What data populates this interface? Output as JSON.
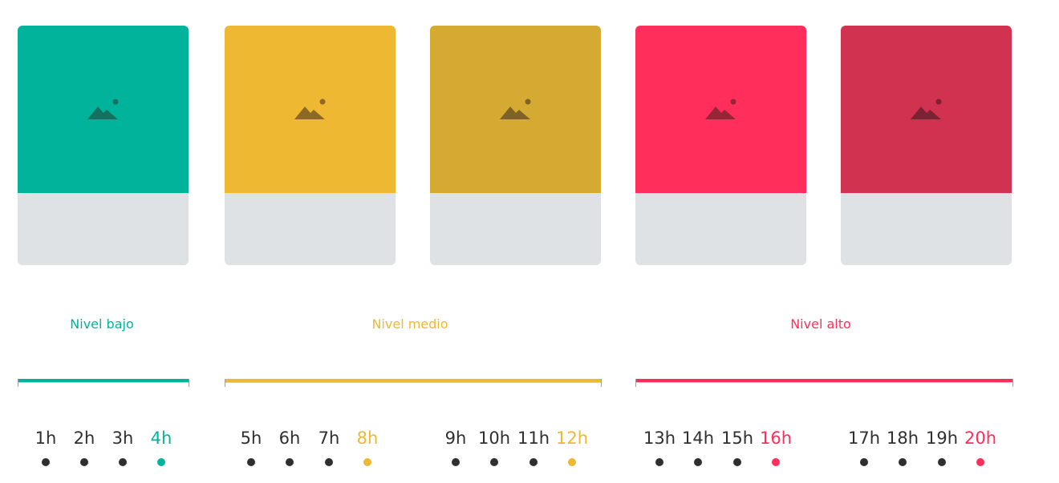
{
  "colors": {
    "low": "#00b39a",
    "medium": "#efb832",
    "medium_dark": "#d4aa33",
    "high": "#ff2e5a",
    "high_dark": "#d1324f",
    "card_bottom": "#dfe2e5",
    "text_dark": "#2f2f2f"
  },
  "cards": [
    {
      "name": "card-low",
      "color": "#00b39a",
      "icon_color": "#14715f",
      "icon": "image-placeholder-icon"
    },
    {
      "name": "card-medium-1",
      "color": "#efb832",
      "icon_color": "#8a6a24",
      "icon": "image-placeholder-icon"
    },
    {
      "name": "card-medium-2",
      "color": "#d4aa33",
      "icon_color": "#7e6324",
      "icon": "image-placeholder-icon"
    },
    {
      "name": "card-high-1",
      "color": "#ff2e5a",
      "icon_color": "#962537",
      "icon": "image-placeholder-icon"
    },
    {
      "name": "card-high-2",
      "color": "#d1324f",
      "icon_color": "#7c2234",
      "icon": "image-placeholder-icon"
    }
  ],
  "levels": [
    {
      "label": "Nivel bajo",
      "color": "#00b39a"
    },
    {
      "label": "Nivel medio",
      "color": "#efb832"
    },
    {
      "label": "Nivel alto",
      "color": "#ff2e5a"
    }
  ],
  "hours": [
    {
      "label": "1h",
      "highlight": false,
      "color": "#2f2f2f"
    },
    {
      "label": "2h",
      "highlight": false,
      "color": "#2f2f2f"
    },
    {
      "label": "3h",
      "highlight": false,
      "color": "#2f2f2f"
    },
    {
      "label": "4h",
      "highlight": true,
      "color": "#00b39a"
    },
    {
      "label": "5h",
      "highlight": false,
      "color": "#2f2f2f"
    },
    {
      "label": "6h",
      "highlight": false,
      "color": "#2f2f2f"
    },
    {
      "label": "7h",
      "highlight": false,
      "color": "#2f2f2f"
    },
    {
      "label": "8h",
      "highlight": true,
      "color": "#efb832"
    },
    {
      "label": "9h",
      "highlight": false,
      "color": "#2f2f2f"
    },
    {
      "label": "10h",
      "highlight": false,
      "color": "#2f2f2f"
    },
    {
      "label": "11h",
      "highlight": false,
      "color": "#2f2f2f"
    },
    {
      "label": "12h",
      "highlight": true,
      "color": "#efb832"
    },
    {
      "label": "13h",
      "highlight": false,
      "color": "#2f2f2f"
    },
    {
      "label": "14h",
      "highlight": false,
      "color": "#2f2f2f"
    },
    {
      "label": "15h",
      "highlight": false,
      "color": "#2f2f2f"
    },
    {
      "label": "16h",
      "highlight": true,
      "color": "#ff2e5a"
    },
    {
      "label": "17h",
      "highlight": false,
      "color": "#2f2f2f"
    },
    {
      "label": "18h",
      "highlight": false,
      "color": "#2f2f2f"
    },
    {
      "label": "19h",
      "highlight": false,
      "color": "#2f2f2f"
    },
    {
      "label": "20h",
      "highlight": true,
      "color": "#ff2e5a"
    }
  ]
}
